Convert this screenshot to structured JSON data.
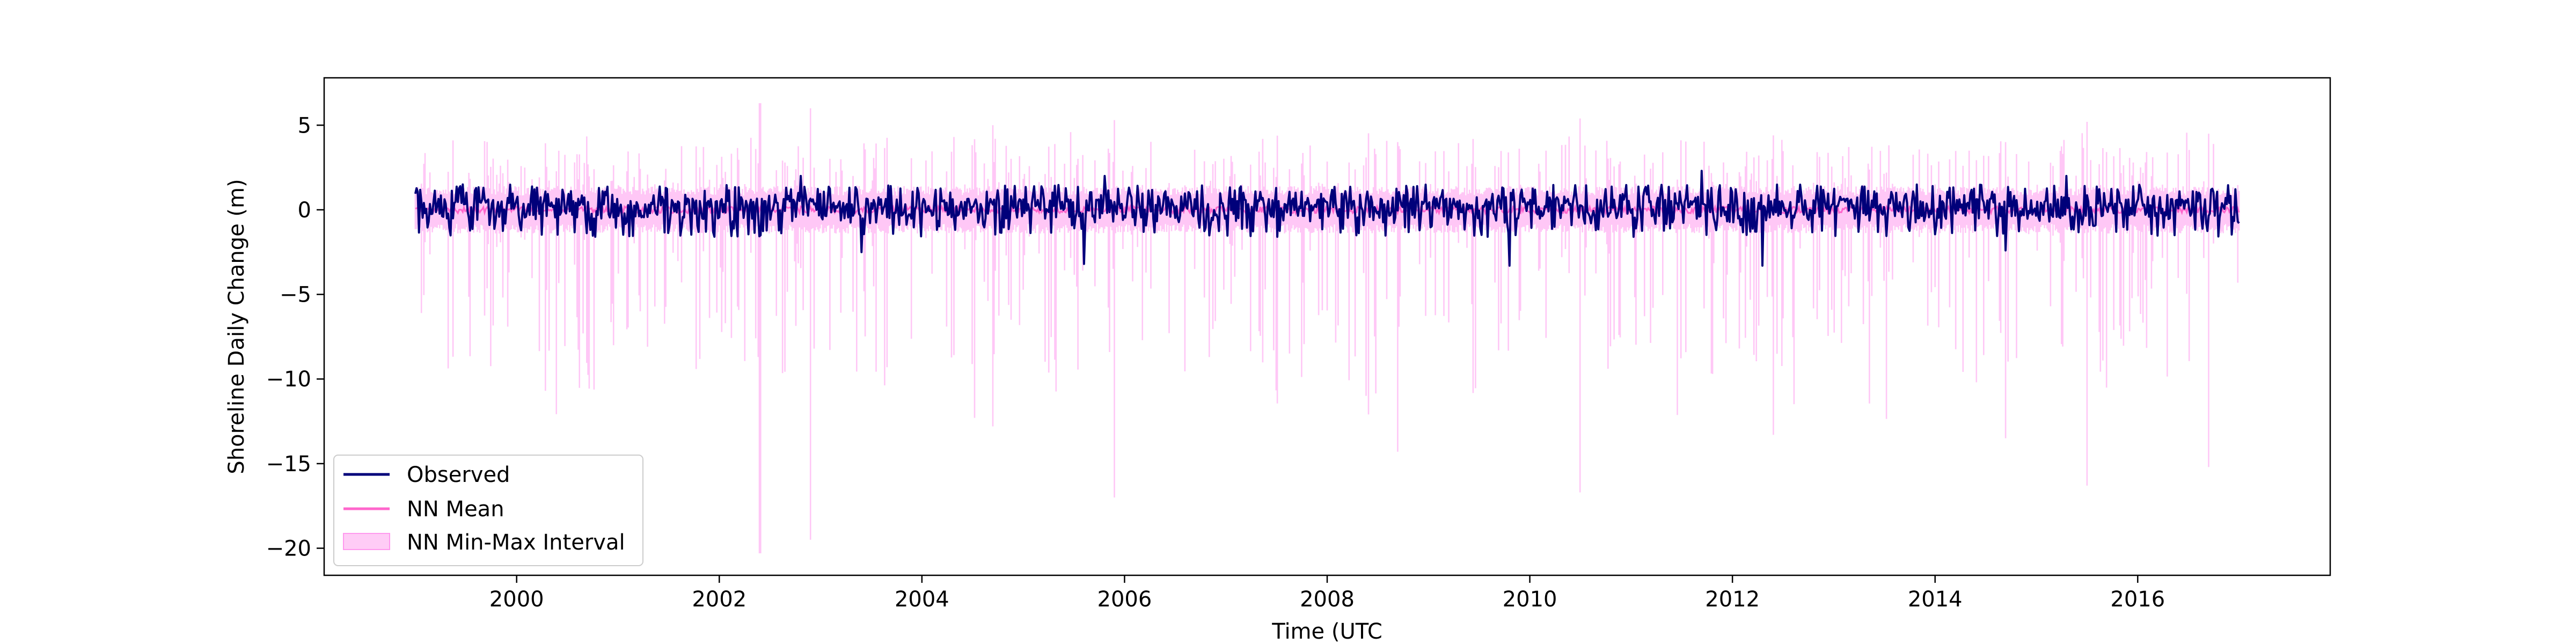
{
  "chart_data": {
    "type": "line",
    "title": "",
    "xlabel": "Time (UTC",
    "ylabel": "Shoreline Daily Change (m)",
    "xlim": [
      1998.1,
      2017.9
    ],
    "ylim": [
      -21.6,
      7.8
    ],
    "x_ticks": [
      2000,
      2002,
      2004,
      2006,
      2008,
      2010,
      2012,
      2014,
      2016
    ],
    "x_tick_labels": [
      "2000",
      "2002",
      "2004",
      "2006",
      "2008",
      "2010",
      "2012",
      "2014",
      "2016"
    ],
    "y_ticks": [
      5,
      0,
      -5,
      -10,
      -15,
      -20
    ],
    "y_tick_labels": [
      "5",
      "0",
      "−5",
      "−10",
      "−15",
      "−20"
    ],
    "grid": false,
    "legend_position": "lower-left",
    "x_range": [
      1999.0,
      2017.0
    ],
    "series": [
      {
        "name": "Observed",
        "kind": "line",
        "color": "#00007a",
        "typical_range": [
          -1.5,
          1.5
        ],
        "extremes": [
          {
            "x": 2002.8,
            "y": 2.0
          },
          {
            "x": 2003.4,
            "y": -2.5
          },
          {
            "x": 2005.6,
            "y": -3.2
          },
          {
            "x": 2005.8,
            "y": 2.0
          },
          {
            "x": 2009.8,
            "y": -3.3
          },
          {
            "x": 2011.7,
            "y": 2.3
          },
          {
            "x": 2012.3,
            "y": -3.3
          },
          {
            "x": 2014.7,
            "y": -2.4
          },
          {
            "x": 2015.3,
            "y": 2.0
          }
        ]
      },
      {
        "name": "NN Mean",
        "kind": "line",
        "color": "#ff66cc",
        "typical_range": [
          -0.2,
          0.2
        ]
      },
      {
        "name": "NN Min-Max Interval",
        "kind": "band",
        "color": "#ff99ee",
        "upper_typical": 1.4,
        "lower_typical": -1.4,
        "extremes": [
          {
            "x": 2002.4,
            "lower": -20.3,
            "upper": 6.3
          },
          {
            "x": 2002.9,
            "lower": -19.5,
            "upper": 6.0
          },
          {
            "x": 2004.7,
            "lower": -12.8,
            "upper": 5.0
          },
          {
            "x": 2005.9,
            "lower": -17.0,
            "upper": 5.3
          },
          {
            "x": 2008.7,
            "lower": -14.3,
            "upper": 4.0
          },
          {
            "x": 2010.5,
            "lower": -16.7,
            "upper": 5.4
          },
          {
            "x": 2012.4,
            "lower": -13.3,
            "upper": 4.4
          },
          {
            "x": 2014.7,
            "lower": -13.5,
            "upper": 4.0
          },
          {
            "x": 2015.5,
            "lower": -16.3,
            "upper": 5.2
          },
          {
            "x": 2016.7,
            "lower": -15.2,
            "upper": 4.5
          }
        ]
      }
    ]
  }
}
